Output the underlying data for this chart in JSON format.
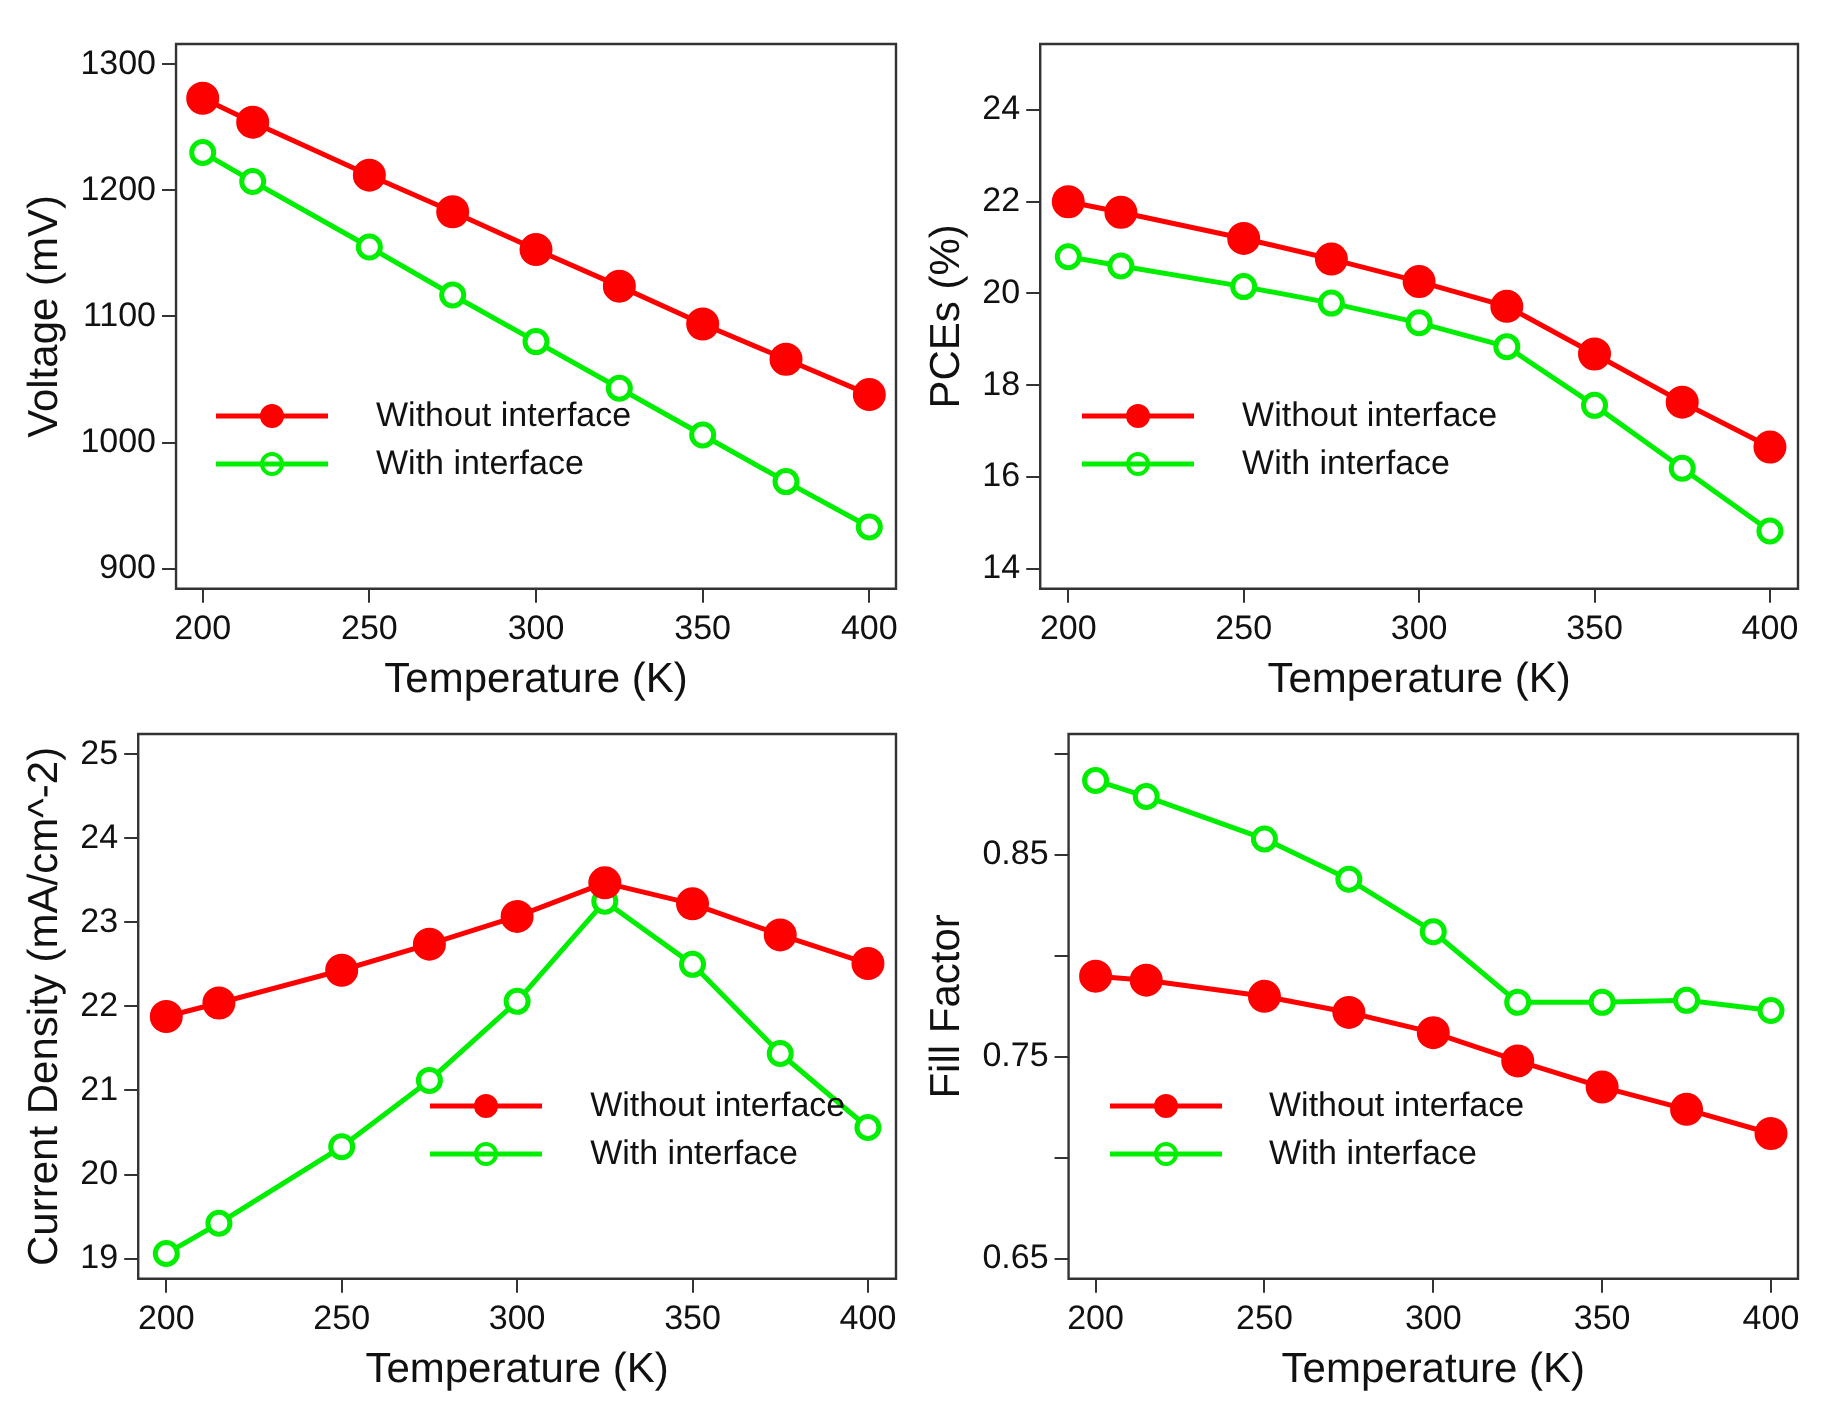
{
  "chart_data": [
    {
      "type": "line",
      "xlabel": "Temperature (K)",
      "ylabel": "Voltage (mV)",
      "x": [
        200,
        215,
        250,
        275,
        300,
        325,
        350,
        375,
        400
      ],
      "xlim": [
        192,
        408
      ],
      "xticks": [
        200,
        250,
        300,
        350,
        400
      ],
      "ylim": [
        884,
        1316
      ],
      "yticks": [
        900,
        1000,
        1100,
        1200,
        1300
      ],
      "grid": false,
      "legend": "bottom left",
      "marker": "circle",
      "line_style": "solid",
      "series": [
        {
          "name": "Without interface",
          "color": "#ff0000",
          "values": [
            1273,
            1254,
            1212,
            1183,
            1153,
            1124,
            1094,
            1066,
            1038
          ]
        },
        {
          "name": "With interface",
          "color": "#00ee00",
          "values": [
            1230,
            1207,
            1155,
            1117,
            1080,
            1043,
            1006,
            969,
            933
          ]
        }
      ]
    },
    {
      "type": "line",
      "xlabel": "Temperature (K)",
      "ylabel": "PCEs (%)",
      "x": [
        200,
        215,
        250,
        275,
        300,
        325,
        350,
        375,
        400
      ],
      "xlim": [
        192,
        408
      ],
      "xticks": [
        200,
        250,
        300,
        350,
        400
      ],
      "ylim": [
        13.56,
        25.44
      ],
      "yticks": [
        14,
        16,
        18,
        20,
        22,
        24
      ],
      "grid": false,
      "legend": "bottom left",
      "marker": "circle",
      "line_style": "solid",
      "series": [
        {
          "name": "Without interface",
          "color": "#ff0000",
          "values": [
            22.0,
            21.77,
            21.2,
            20.75,
            20.26,
            19.72,
            18.68,
            17.63,
            16.65
          ]
        },
        {
          "name": "With interface",
          "color": "#00ee00",
          "values": [
            20.8,
            20.6,
            20.15,
            19.79,
            19.36,
            18.84,
            17.56,
            16.19,
            14.82
          ]
        }
      ]
    },
    {
      "type": "line",
      "xlabel": "Temperature (K)",
      "ylabel": "Current Density (mA/cm^-2)",
      "x": [
        200,
        215,
        250,
        275,
        300,
        325,
        350,
        375,
        400
      ],
      "xlim": [
        192,
        408
      ],
      "xticks": [
        200,
        250,
        300,
        350,
        400
      ],
      "ylim": [
        18.76,
        25.24
      ],
      "yticks": [
        19,
        20,
        21,
        22,
        23,
        24,
        25
      ],
      "grid": false,
      "legend": "bottom right",
      "marker": "circle",
      "line_style": "solid",
      "series": [
        {
          "name": "Without interface",
          "color": "#ff0000",
          "values": [
            21.88,
            22.04,
            22.43,
            22.74,
            23.07,
            23.47,
            23.22,
            22.85,
            22.51
          ]
        },
        {
          "name": "With interface",
          "color": "#00ee00",
          "values": [
            19.06,
            19.42,
            20.33,
            21.12,
            22.06,
            23.25,
            22.5,
            21.44,
            20.56
          ]
        }
      ]
    },
    {
      "type": "line",
      "xlabel": "Temperature (K)",
      "ylabel": "Fill Factor",
      "x": [
        200,
        215,
        250,
        275,
        300,
        325,
        350,
        375,
        400
      ],
      "xlim": [
        192,
        408
      ],
      "xticks": [
        200,
        250,
        300,
        350,
        400
      ],
      "ylim": [
        0.64,
        0.91
      ],
      "yticks": [
        0.65,
        {
          "value": 0.7,
          "label": null
        },
        0.75,
        {
          "value": 0.8,
          "label": null
        },
        0.85,
        {
          "value": 0.9,
          "label": null
        }
      ],
      "grid": false,
      "legend": "bottom left",
      "marker": "circle",
      "line_style": "solid",
      "series": [
        {
          "name": "Without interface",
          "color": "#ff0000",
          "values": [
            0.79,
            0.788,
            0.78,
            0.772,
            0.762,
            0.748,
            0.735,
            0.724,
            0.712
          ]
        },
        {
          "name": "With interface",
          "color": "#00ee00",
          "values": [
            0.887,
            0.879,
            0.858,
            0.838,
            0.812,
            0.777,
            0.777,
            0.778,
            0.773
          ]
        }
      ]
    }
  ]
}
